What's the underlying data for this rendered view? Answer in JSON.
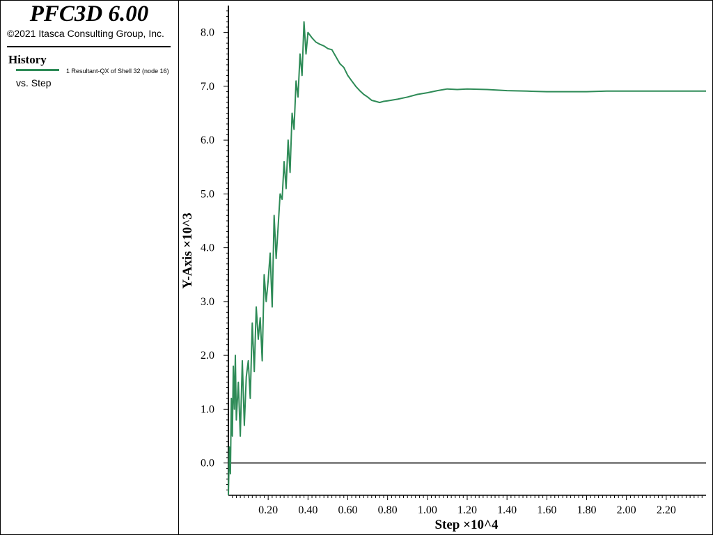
{
  "header": {
    "title": "PFC3D 6.00",
    "copyright": "©2021 Itasca Consulting Group, Inc."
  },
  "legend": {
    "title": "History",
    "entry": "1 Resultant-QX of Shell 32 (node 16)",
    "vs_label": "vs. Step",
    "color": "#2e8b57"
  },
  "chart_data": {
    "type": "line",
    "xlabel": "Step ×10^4",
    "ylabel": "Y-Axis ×10^3",
    "xlim": [
      0,
      2.4
    ],
    "ylim": [
      -0.6,
      8.5
    ],
    "xticks": [
      0.2,
      0.4,
      0.6,
      0.8,
      1.0,
      1.2,
      1.4,
      1.6,
      1.8,
      2.0,
      2.2
    ],
    "xtick_labels": [
      "0.20",
      "0.40",
      "0.60",
      "0.80",
      "1.00",
      "1.20",
      "1.40",
      "1.60",
      "1.80",
      "2.00",
      "2.20"
    ],
    "yticks": [
      0,
      1,
      2,
      3,
      4,
      5,
      6,
      7,
      8
    ],
    "ytick_labels": [
      "0.0",
      "1.0",
      "2.0",
      "3.0",
      "4.0",
      "5.0",
      "6.0",
      "7.0",
      "8.0"
    ],
    "zero_line": true,
    "series": [
      {
        "name": "1 Resultant-QX of Shell 32 (node 16)",
        "color": "#2e8b57",
        "x": [
          0.0,
          0.005,
          0.01,
          0.015,
          0.02,
          0.025,
          0.03,
          0.035,
          0.04,
          0.05,
          0.06,
          0.07,
          0.08,
          0.09,
          0.1,
          0.11,
          0.12,
          0.13,
          0.14,
          0.15,
          0.16,
          0.17,
          0.18,
          0.19,
          0.2,
          0.21,
          0.22,
          0.23,
          0.24,
          0.25,
          0.26,
          0.27,
          0.28,
          0.29,
          0.3,
          0.31,
          0.32,
          0.33,
          0.34,
          0.35,
          0.36,
          0.37,
          0.38,
          0.39,
          0.4,
          0.42,
          0.44,
          0.46,
          0.48,
          0.5,
          0.52,
          0.54,
          0.56,
          0.58,
          0.6,
          0.62,
          0.64,
          0.66,
          0.68,
          0.7,
          0.72,
          0.74,
          0.76,
          0.78,
          0.8,
          0.85,
          0.9,
          0.95,
          1.0,
          1.05,
          1.1,
          1.15,
          1.2,
          1.3,
          1.4,
          1.5,
          1.6,
          1.7,
          1.8,
          1.9,
          2.0,
          2.1,
          2.2,
          2.3,
          2.4
        ],
        "values": [
          -0.6,
          0.3,
          -0.2,
          1.2,
          0.5,
          1.8,
          1.0,
          2.0,
          0.8,
          1.5,
          0.5,
          1.9,
          0.7,
          1.6,
          1.9,
          1.2,
          2.6,
          1.7,
          2.9,
          2.3,
          2.7,
          1.9,
          3.5,
          3.0,
          3.4,
          3.9,
          2.9,
          4.6,
          3.8,
          4.4,
          5.0,
          4.9,
          5.6,
          5.1,
          6.0,
          5.4,
          6.5,
          6.2,
          7.1,
          6.8,
          7.6,
          7.2,
          8.2,
          7.6,
          8.0,
          7.9,
          7.82,
          7.78,
          7.75,
          7.7,
          7.68,
          7.55,
          7.42,
          7.35,
          7.2,
          7.1,
          7.0,
          6.92,
          6.85,
          6.8,
          6.74,
          6.72,
          6.7,
          6.72,
          6.73,
          6.76,
          6.8,
          6.85,
          6.88,
          6.92,
          6.95,
          6.94,
          6.95,
          6.94,
          6.92,
          6.91,
          6.9,
          6.9,
          6.9,
          6.91,
          6.91,
          6.91,
          6.91,
          6.91,
          6.91
        ]
      }
    ]
  }
}
